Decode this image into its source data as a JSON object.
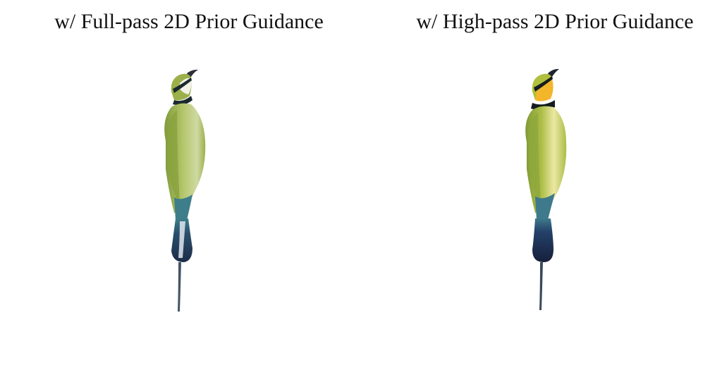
{
  "panels": [
    {
      "title": "w/ Full-pass 2D Prior Guidance",
      "image_subject": "bird-render",
      "colors": {
        "body": "#a6b84e",
        "belly": "#cfd9a3",
        "throat": "#f2f2e8",
        "band": "#1b2a2f",
        "tail": "#233a5a",
        "tail_highlight": "#dfe8f0",
        "beak": "#2a2f3a"
      }
    },
    {
      "title": "w/ High-pass 2D Prior Guidance",
      "image_subject": "bird-render",
      "colors": {
        "body": "#a9bd45",
        "belly": "#e9e69a",
        "throat": "#f3b52a",
        "band": "#151c20",
        "tail": "#1c2e4e",
        "tail_highlight": "#3f7a8c",
        "beak": "#1e2330"
      }
    }
  ]
}
